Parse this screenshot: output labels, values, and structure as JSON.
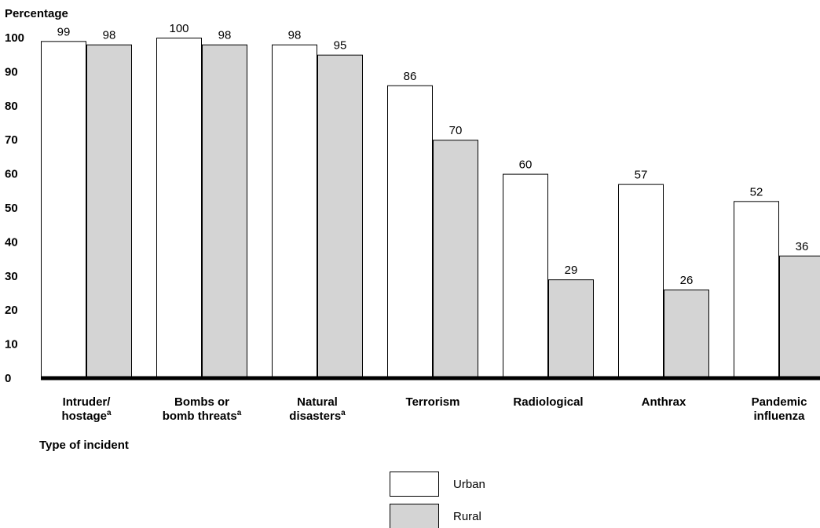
{
  "chart_data": {
    "type": "bar",
    "ylabel": "Percentage",
    "xlabel": "Type of incident",
    "ylim": [
      0,
      100
    ],
    "yticks": [
      0,
      10,
      20,
      30,
      40,
      50,
      60,
      70,
      80,
      90,
      100
    ],
    "categories": [
      [
        "Intruder/",
        "hostage"
      ],
      [
        "Bombs or",
        "bomb threats"
      ],
      [
        "Natural",
        "disasters"
      ],
      [
        "Terrorism"
      ],
      [
        "Radiological"
      ],
      [
        "Anthrax"
      ],
      [
        "Pandemic",
        "influenza"
      ]
    ],
    "footnote_marks": [
      "a",
      "a",
      "a",
      "",
      "",
      "",
      ""
    ],
    "series": [
      {
        "name": "Urban",
        "color": "#ffffff",
        "values": [
          99,
          100,
          98,
          86,
          60,
          57,
          52
        ]
      },
      {
        "name": "Rural",
        "color": "#d4d4d4",
        "values": [
          98,
          98,
          95,
          70,
          29,
          26,
          36
        ]
      }
    ],
    "legend_position": "bottom-center",
    "grid": false
  }
}
